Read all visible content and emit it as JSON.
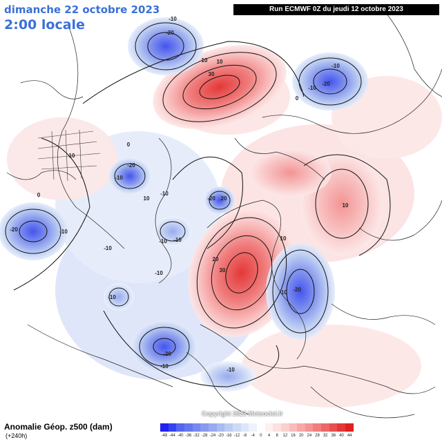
{
  "header": {
    "date_line": "dimanche 22 octobre 2023",
    "time_line": "2:00 locale",
    "run_info": "Run ECMWF 0Z du jeudi 12 octobre 2023"
  },
  "footer": {
    "title": "Anomalie Géop. z500 (dam)",
    "subtitle": "(+240h)",
    "copyright": "Copyright 2023 Meteociel.fr"
  },
  "legend": {
    "colors": [
      "#2222ee",
      "#3344ee",
      "#5566ee",
      "#6677ee",
      "#7788ee",
      "#8899ee",
      "#99aaee",
      "#aabbf0",
      "#bbccf3",
      "#ccdaf6",
      "#dde6f9",
      "#eef2fc",
      "#ffffff",
      "#fff0f0",
      "#fde0e0",
      "#fbd0d0",
      "#f9bcbc",
      "#f6a8a8",
      "#f39494",
      "#f07e7e",
      "#ec6868",
      "#e85050",
      "#e43838",
      "#e02020"
    ],
    "labels": [
      "-48",
      "-44",
      "-40",
      "-36",
      "-32",
      "-28",
      "-24",
      "-20",
      "-16",
      "-12",
      "-8",
      "-4",
      "0",
      "4",
      "8",
      "12",
      "16",
      "20",
      "24",
      "28",
      "32",
      "36",
      "40",
      "44"
    ]
  },
  "map_labels": [
    {
      "text": "-10"
    },
    {
      "text": "-20"
    },
    {
      "text": "10"
    },
    {
      "text": "10"
    },
    {
      "text": "30"
    },
    {
      "text": "-10"
    },
    {
      "text": "-20"
    },
    {
      "text": "-10"
    },
    {
      "text": "0"
    },
    {
      "text": "10"
    },
    {
      "text": "-10"
    },
    {
      "text": "-20"
    },
    {
      "text": "-10"
    },
    {
      "text": "-20"
    },
    {
      "text": "20"
    },
    {
      "text": "-20"
    },
    {
      "text": "-10"
    },
    {
      "text": "-10"
    },
    {
      "text": "0"
    },
    {
      "text": "-10"
    },
    {
      "text": "-10"
    },
    {
      "text": "20"
    },
    {
      "text": "30"
    },
    {
      "text": "10"
    },
    {
      "text": "-10"
    },
    {
      "text": "-20"
    },
    {
      "text": "-10"
    },
    {
      "text": "-20"
    },
    {
      "text": "-10"
    },
    {
      "text": "-10"
    },
    {
      "text": "10"
    },
    {
      "text": "10"
    },
    {
      "text": "-10"
    },
    {
      "text": "0"
    }
  ]
}
